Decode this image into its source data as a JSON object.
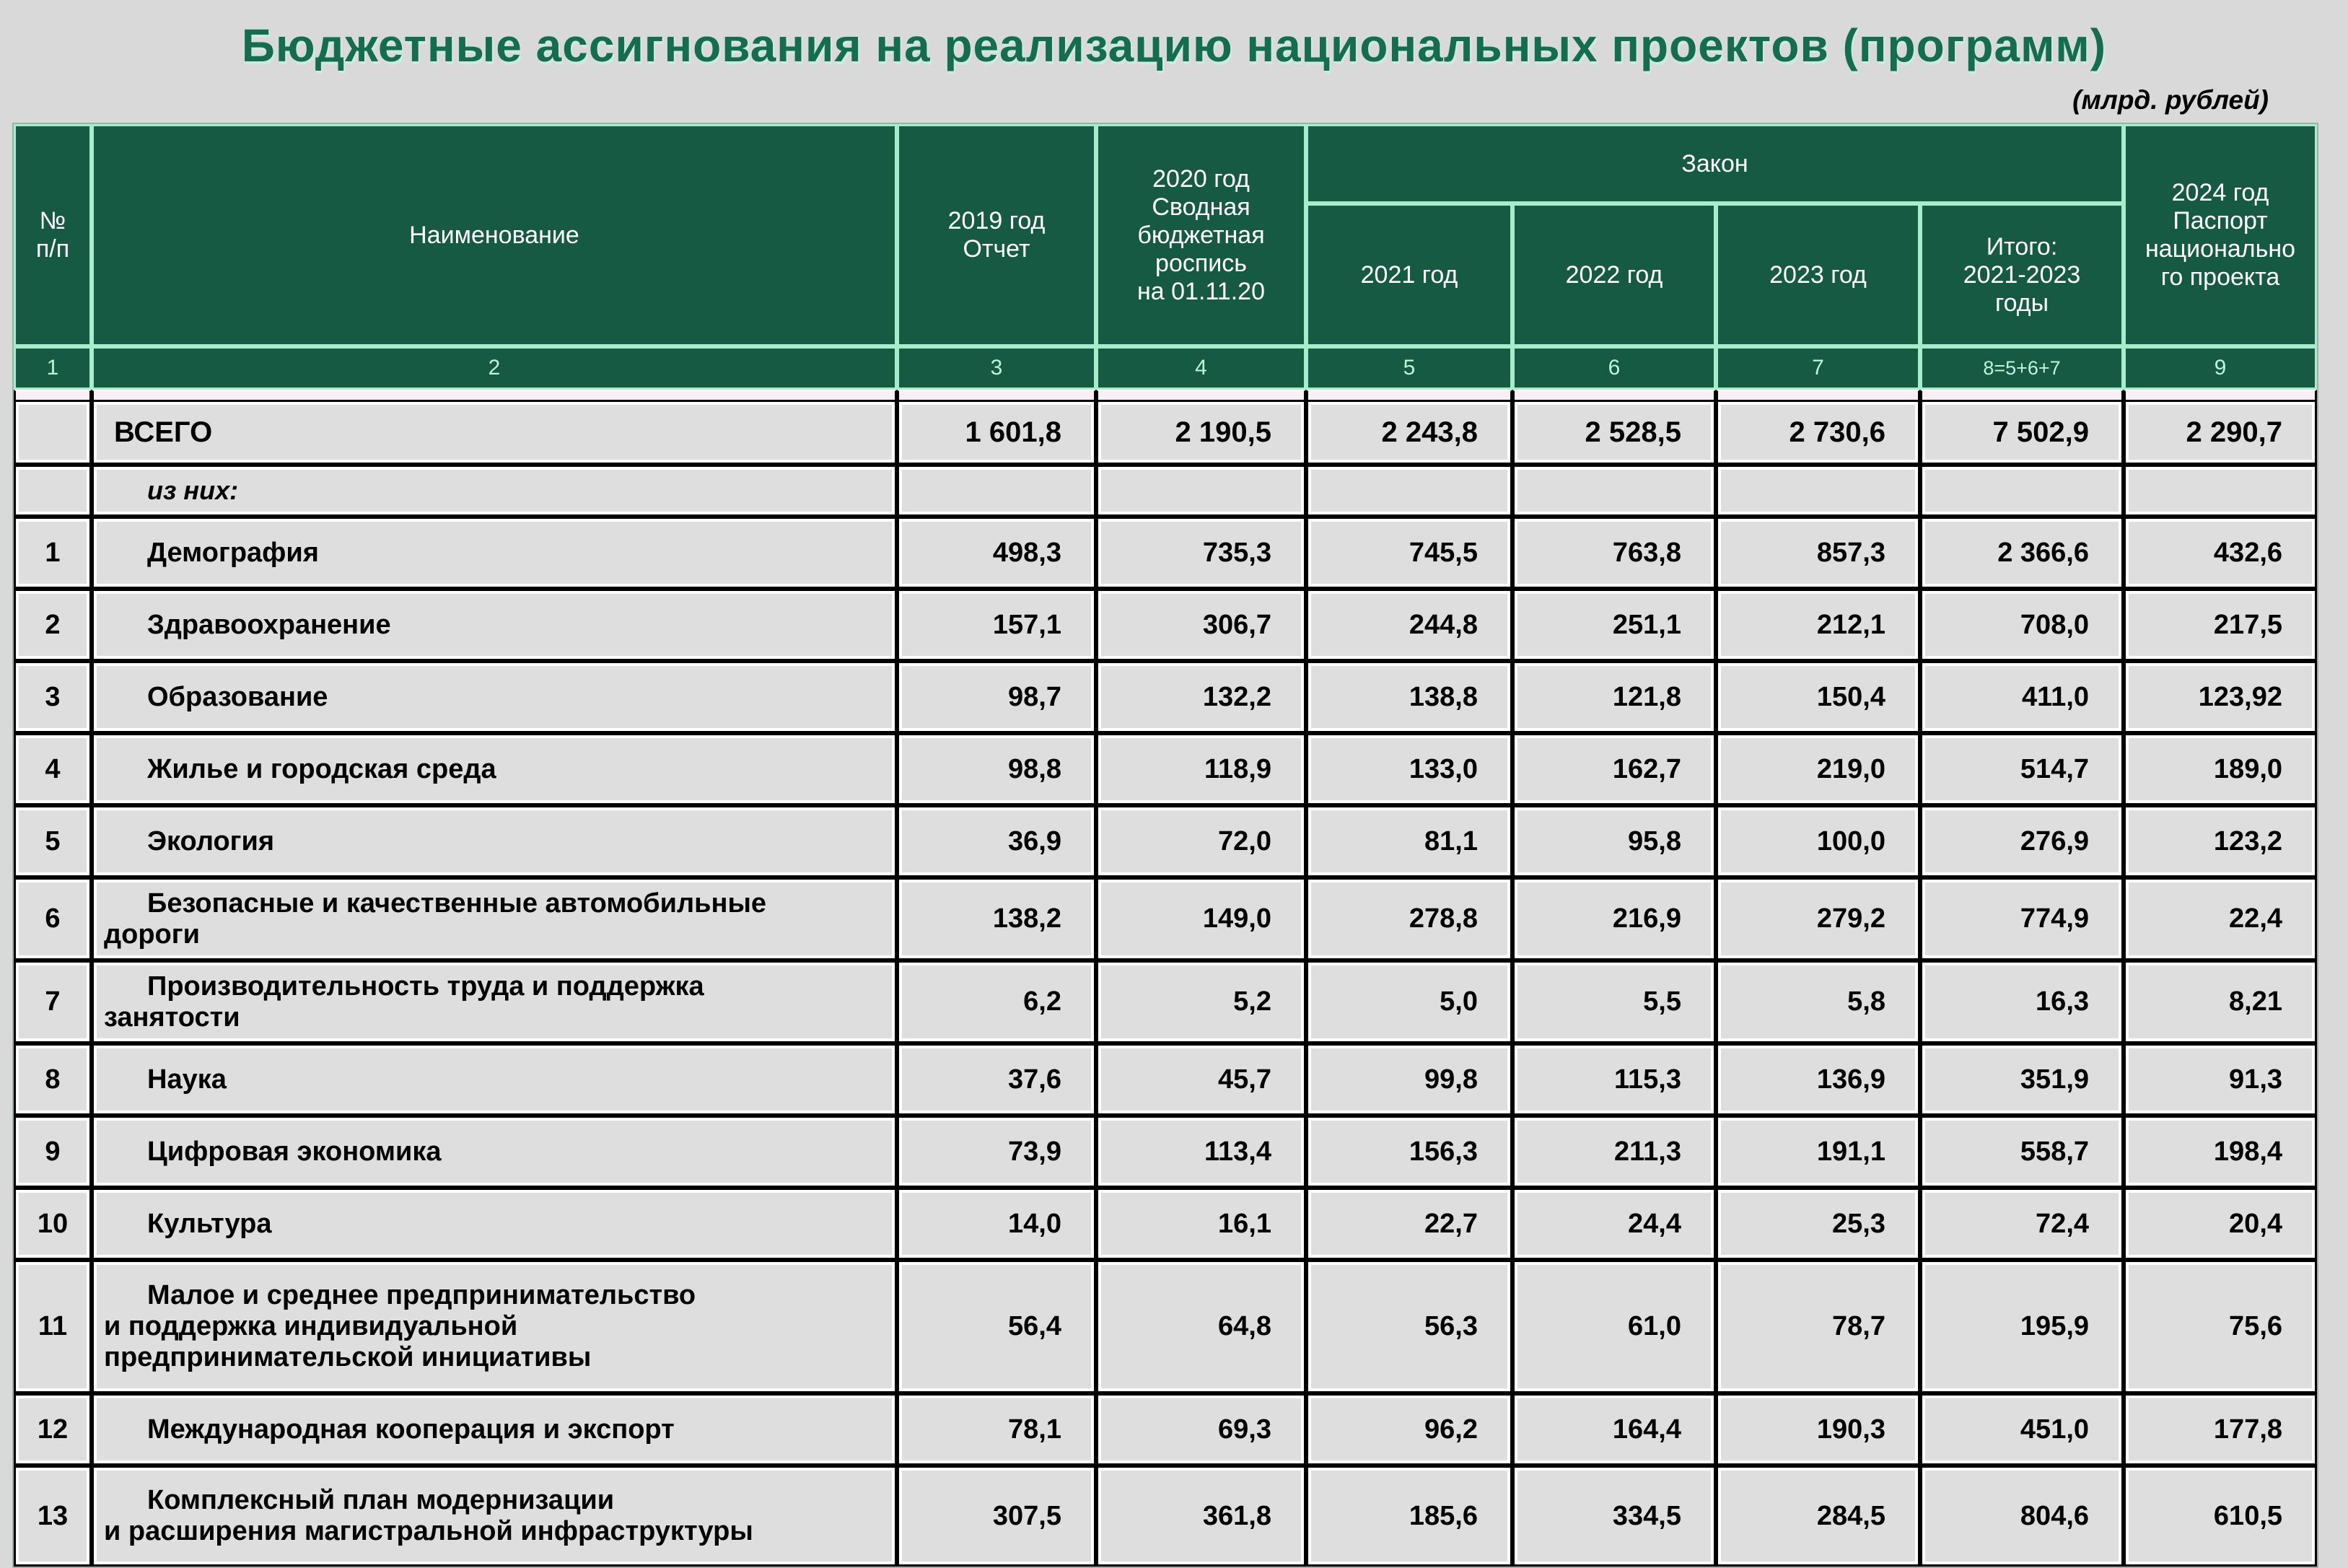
{
  "title": "Бюджетные ассигнования на реализацию национальных проектов (программ)",
  "unit_note": "(млрд. рублей)",
  "colors": {
    "header_green": "#165a44",
    "header_separator_mint": "#a7eccd",
    "header_index_text": "#bdf4da",
    "title_green": "#156c4e",
    "body_cell_bg": "#dedede",
    "page_bg": "#d9d9d9",
    "separator_strip_pink": "#fbeff7",
    "body_border": "#000000"
  },
  "table": {
    "header": {
      "col_no": "№\nп/п",
      "col_name": "Наименование",
      "col_2019": "2019 год\nОтчет",
      "col_2020": "2020 год\nСводная\nбюджетная\nроспись\nна 01.11.20",
      "group_zakon": "Закон",
      "col_2021": "2021 год",
      "col_2022": "2022 год",
      "col_2023": "2023 год",
      "col_itogo": "Итого:\n2021-2023\nгоды",
      "col_2024": "2024 год\nПаспорт\nнационально\nго проекта"
    },
    "col_numbers": [
      "1",
      "2",
      "3",
      "4",
      "5",
      "6",
      "7",
      "8=5+6+7",
      "9"
    ],
    "rows": [
      {
        "num": "",
        "name": "ВСЕГО",
        "style": "total",
        "values": [
          "1 601,8",
          "2 190,5",
          "2 243,8",
          "2 528,5",
          "2 730,6",
          "7 502,9",
          "2 290,7"
        ]
      },
      {
        "num": "",
        "name": "из них:",
        "style": "subnote",
        "values": [
          "",
          "",
          "",
          "",
          "",
          "",
          ""
        ]
      },
      {
        "num": "1",
        "name": "Демография",
        "style": "",
        "values": [
          "498,3",
          "735,3",
          "745,5",
          "763,8",
          "857,3",
          "2 366,6",
          "432,6"
        ]
      },
      {
        "num": "2",
        "name": "Здравоохранение",
        "style": "",
        "values": [
          "157,1",
          "306,7",
          "244,8",
          "251,1",
          "212,1",
          "708,0",
          "217,5"
        ]
      },
      {
        "num": "3",
        "name": "Образование",
        "style": "",
        "values": [
          "98,7",
          "132,2",
          "138,8",
          "121,8",
          "150,4",
          "411,0",
          "123,92"
        ]
      },
      {
        "num": "4",
        "name": "Жилье и городская среда",
        "style": "",
        "values": [
          "98,8",
          "118,9",
          "133,0",
          "162,7",
          "219,0",
          "514,7",
          "189,0"
        ]
      },
      {
        "num": "5",
        "name": "Экология",
        "style": "",
        "values": [
          "36,9",
          "72,0",
          "81,1",
          "95,8",
          "100,0",
          "276,9",
          "123,2"
        ]
      },
      {
        "num": "6",
        "name": "Безопасные и качественные автомобильные\nдороги",
        "style": "wrap2",
        "values": [
          "138,2",
          "149,0",
          "278,8",
          "216,9",
          "279,2",
          "774,9",
          "22,4"
        ]
      },
      {
        "num": "7",
        "name": "Производительность труда и поддержка\nзанятости",
        "style": "wrap2",
        "values": [
          "6,2",
          "5,2",
          "5,0",
          "5,5",
          "5,8",
          "16,3",
          "8,21"
        ]
      },
      {
        "num": "8",
        "name": "Наука",
        "style": "",
        "values": [
          "37,6",
          "45,7",
          "99,8",
          "115,3",
          "136,9",
          "351,9",
          "91,3"
        ]
      },
      {
        "num": "9",
        "name": "Цифровая экономика",
        "style": "",
        "values": [
          "73,9",
          "113,4",
          "156,3",
          "211,3",
          "191,1",
          "558,7",
          "198,4"
        ]
      },
      {
        "num": "10",
        "name": "Культура",
        "style": "",
        "values": [
          "14,0",
          "16,1",
          "22,7",
          "24,4",
          "25,3",
          "72,4",
          "20,4"
        ]
      },
      {
        "num": "11",
        "name": "Малое и среднее предпринимательство\nи поддержка индивидуальной\nпредпринимательской инициативы",
        "style": "wrap3",
        "values": [
          "56,4",
          "64,8",
          "56,3",
          "61,0",
          "78,7",
          "195,9",
          "75,6"
        ]
      },
      {
        "num": "12",
        "name": "Международная кооперация и экспорт",
        "style": "",
        "values": [
          "78,1",
          "69,3",
          "96,2",
          "164,4",
          "190,3",
          "451,0",
          "177,8"
        ]
      },
      {
        "num": "13",
        "name": "Комплексный план модернизации\nи расширения магистральной инфраструктуры",
        "style": "wrap13",
        "values": [
          "307,5",
          "361,8",
          "185,6",
          "334,5",
          "284,5",
          "804,6",
          "610,5"
        ]
      }
    ]
  }
}
